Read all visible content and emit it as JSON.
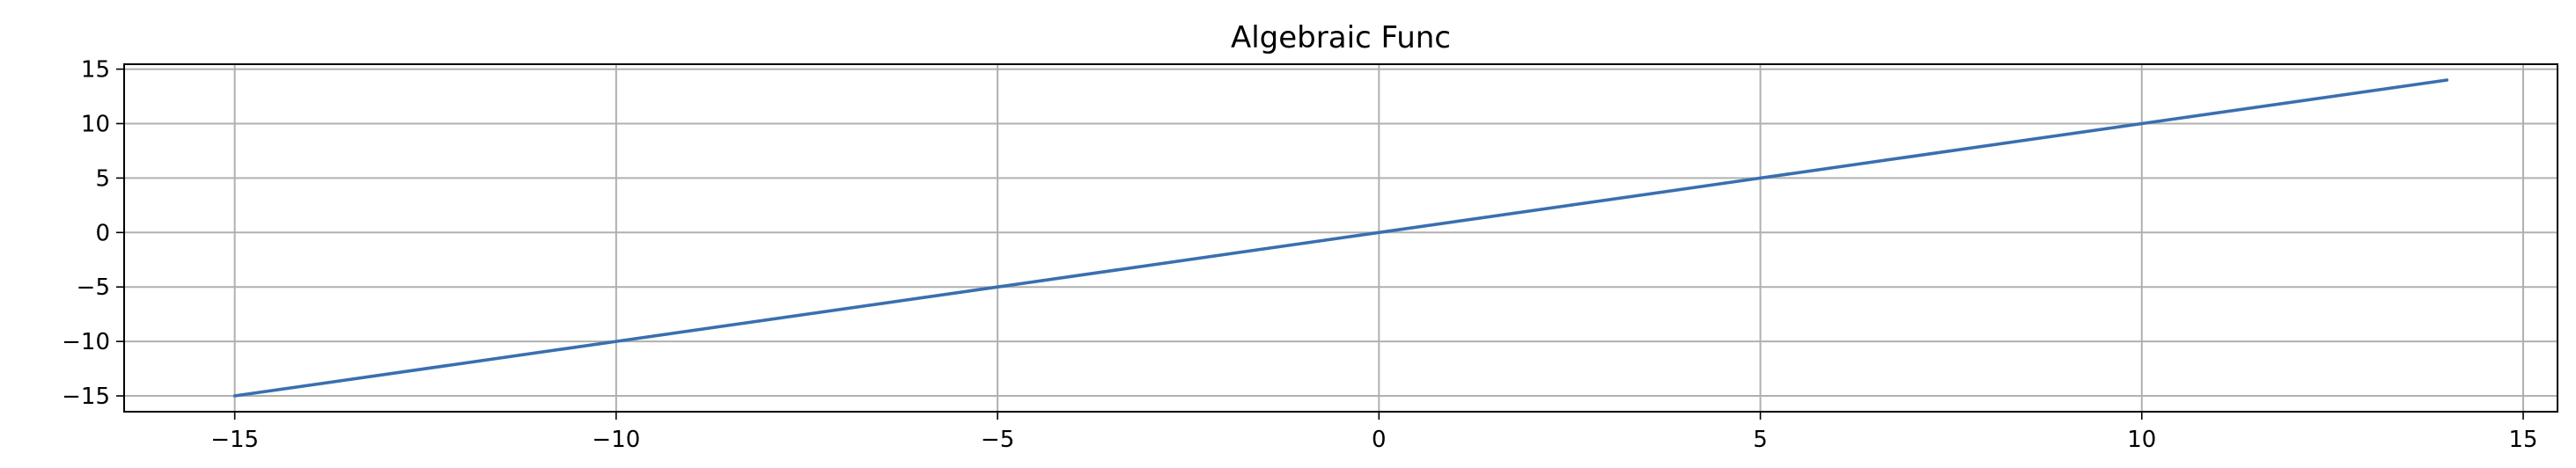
{
  "chart_data": {
    "type": "line",
    "title": "Algebraic Func",
    "xlabel": "",
    "ylabel": "",
    "xlim": [
      -16.45,
      15.45
    ],
    "ylim": [
      -16.45,
      15.45
    ],
    "x_ticks": [
      -15,
      -10,
      -5,
      0,
      5,
      10,
      15
    ],
    "y_ticks": [
      -15,
      -10,
      -5,
      0,
      5,
      10,
      15
    ],
    "grid": true,
    "legend": "none",
    "series": [
      {
        "color": "#3a6faf",
        "x": [
          -15,
          -10,
          -5,
          0,
          5,
          10,
          14
        ],
        "y": [
          -15,
          -10,
          -5,
          0,
          5,
          10,
          14
        ]
      }
    ]
  }
}
